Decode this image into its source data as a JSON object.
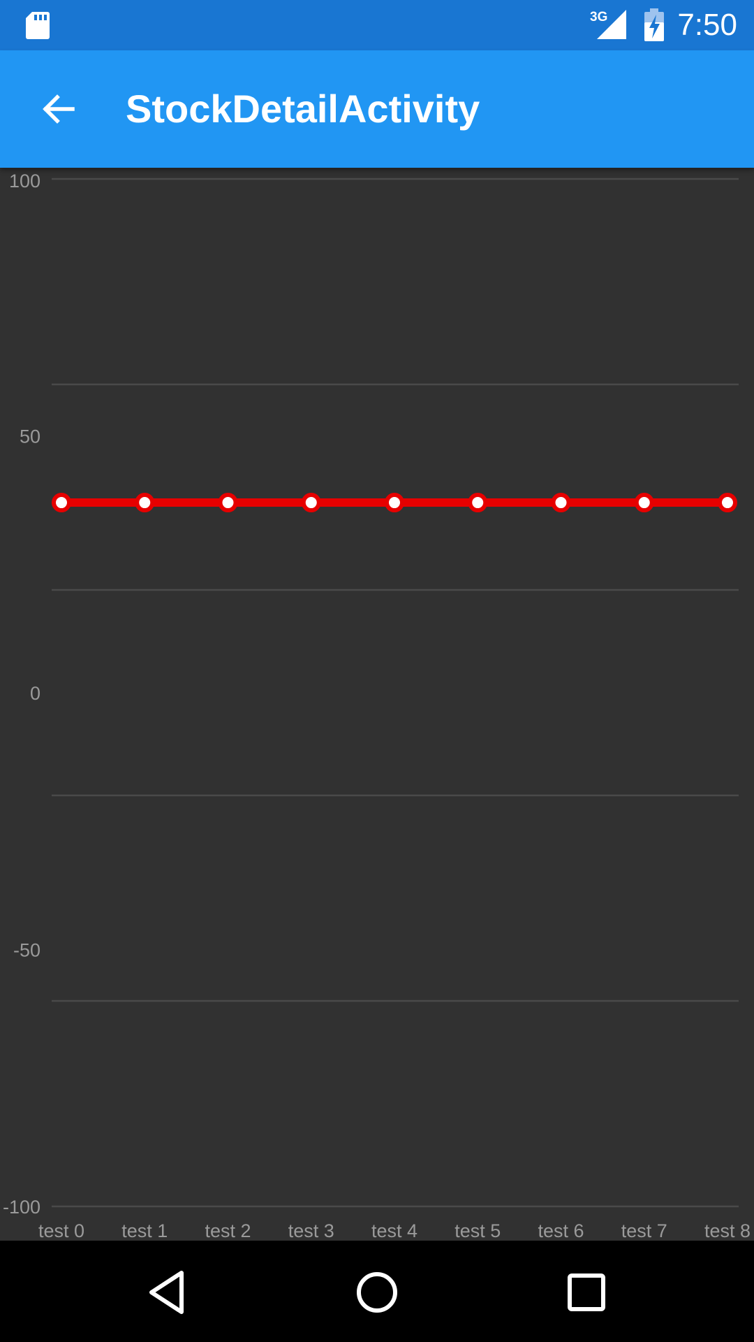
{
  "status_bar": {
    "network": "3G",
    "time": "7:50",
    "icons": [
      "sd-card-icon",
      "signal-icon",
      "battery-charging-icon"
    ]
  },
  "app_bar": {
    "title": "StockDetailActivity",
    "back_icon": "arrow-back-icon"
  },
  "chart_data": {
    "type": "line",
    "title": "",
    "xlabel": "",
    "ylabel": "",
    "categories": [
      "test 0",
      "test 1",
      "test 2",
      "test 3",
      "test 4",
      "test 5",
      "test 6",
      "test 7",
      "test 8"
    ],
    "series": [
      {
        "values": [
          37,
          37,
          37,
          37,
          37,
          37,
          37,
          37,
          37
        ],
        "color": "#E60000"
      }
    ],
    "ylim": [
      -100,
      100
    ],
    "yticks": [
      -100,
      -50,
      0,
      50,
      100
    ],
    "y_tick_labels": [
      "-100",
      "-50",
      "0",
      "50",
      "100"
    ],
    "grid": true,
    "legend": "none",
    "background": "#313131",
    "gridline_color": "#4a4a4a",
    "marker_fill": "#FFFFFF"
  },
  "nav_bar": {
    "icons": [
      "back-triangle-icon",
      "home-circle-icon",
      "recents-square-icon"
    ]
  }
}
